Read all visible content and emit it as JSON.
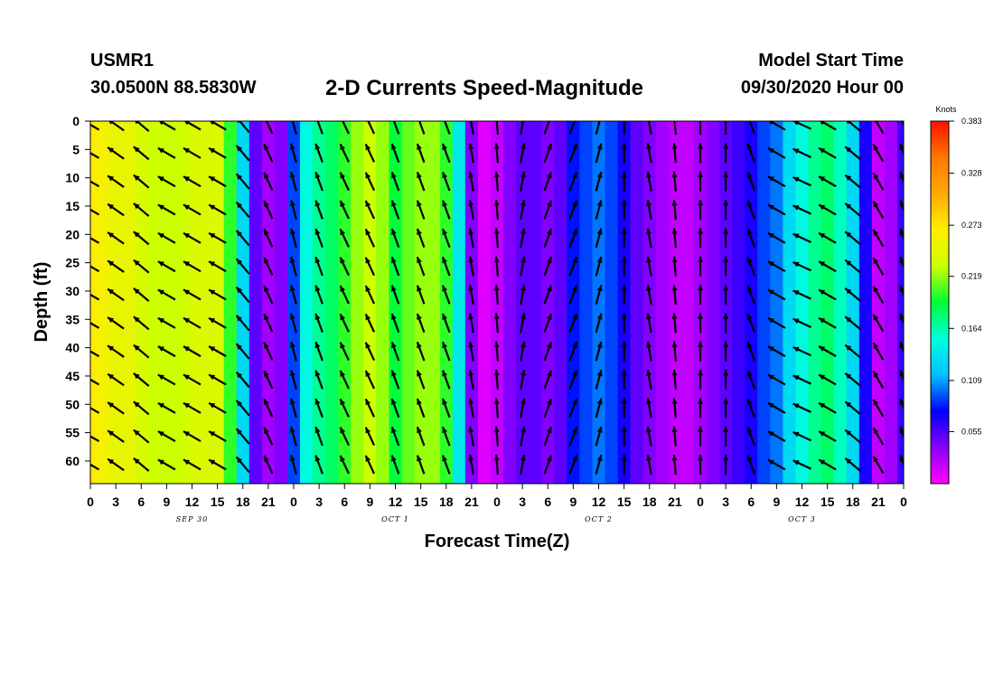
{
  "header": {
    "station_id": "USMR1",
    "station_position": "30.0500N 88.5830W",
    "title": "2-D Currents Speed-Magnitude",
    "start_label": "Model Start Time",
    "start_value": "09/30/2020 Hour 00"
  },
  "colors": {
    "scale": [
      "#ff00ff",
      "#8800ff",
      "#0000ff",
      "#00c0ff",
      "#00ffdd",
      "#00ff33",
      "#ccff00",
      "#ffee00",
      "#ffaa00",
      "#ff7700",
      "#ff1100"
    ],
    "arrow": "#000000"
  },
  "chart_data": {
    "type": "heatmap",
    "title": "2-D Currents Speed-Magnitude",
    "xlabel": "Forecast Time(Z)",
    "ylabel": "Depth (ft)",
    "x_range": [
      0,
      96
    ],
    "x_unit": "hours",
    "x_tick_labels": [
      "0",
      "3",
      "6",
      "9",
      "12",
      "15",
      "18",
      "21",
      "0",
      "3",
      "6",
      "9",
      "12",
      "15",
      "18",
      "21",
      "0",
      "3",
      "6",
      "9",
      "12",
      "15",
      "18",
      "21",
      "0",
      "3",
      "6",
      "9",
      "12",
      "15",
      "18",
      "21",
      "0"
    ],
    "day_labels": [
      {
        "text": "SEP 30",
        "hour": 12
      },
      {
        "text": "OCT 1",
        "hour": 36
      },
      {
        "text": "OCT 2",
        "hour": 60
      },
      {
        "text": "OCT 3",
        "hour": 84
      }
    ],
    "y_range": [
      0,
      64
    ],
    "y_ticks": [
      0,
      5,
      10,
      15,
      20,
      25,
      30,
      35,
      40,
      45,
      50,
      55,
      60
    ],
    "colorbar": {
      "title": "Knots",
      "range": [
        0,
        0.383
      ],
      "labels": [
        "0.383",
        "0.328",
        "0.273",
        "0.219",
        "0.164",
        "0.109",
        "0.055"
      ]
    },
    "columns": {
      "hours": [
        0,
        1.5,
        3,
        4.5,
        6,
        7.5,
        9,
        10.5,
        12,
        13.5,
        15,
        16.5,
        18,
        19.5,
        21,
        22.5,
        24,
        25.5,
        27,
        28.5,
        30,
        31.5,
        33,
        34.5,
        36,
        37.5,
        39,
        40.5,
        42,
        43.5,
        45,
        46.5,
        48,
        49.5,
        51,
        52.5,
        54,
        55.5,
        57,
        58.5,
        60,
        61.5,
        63,
        64.5,
        66,
        67.5,
        69,
        70.5,
        72,
        73.5,
        75,
        76.5,
        78,
        79.5,
        81,
        82.5,
        84,
        85.5,
        87,
        88.5,
        90,
        91.5,
        93,
        94.5,
        96
      ],
      "speed_knots": [
        0.27,
        0.26,
        0.25,
        0.25,
        0.24,
        0.23,
        0.23,
        0.23,
        0.24,
        0.24,
        0.24,
        0.2,
        0.13,
        0.05,
        0.03,
        0.04,
        0.09,
        0.15,
        0.17,
        0.18,
        0.2,
        0.22,
        0.23,
        0.22,
        0.19,
        0.21,
        0.22,
        0.22,
        0.2,
        0.14,
        0.04,
        0.01,
        0.02,
        0.04,
        0.05,
        0.05,
        0.04,
        0.05,
        0.08,
        0.09,
        0.1,
        0.09,
        0.07,
        0.05,
        0.04,
        0.03,
        0.02,
        0.02,
        0.03,
        0.04,
        0.05,
        0.06,
        0.07,
        0.09,
        0.1,
        0.13,
        0.15,
        0.17,
        0.18,
        0.16,
        0.13,
        0.07,
        0.02,
        0.03,
        0.06
      ],
      "arrow_dir_deg": [
        -60,
        -60,
        -55,
        -55,
        -50,
        -55,
        -60,
        -60,
        -60,
        -60,
        -60,
        -60,
        -40,
        -30,
        -25,
        -20,
        -15,
        -15,
        -20,
        -20,
        -25,
        -25,
        -25,
        -25,
        -20,
        -20,
        -20,
        -20,
        -20,
        -15,
        -10,
        -10,
        -5,
        0,
        10,
        15,
        20,
        20,
        20,
        20,
        15,
        10,
        0,
        -5,
        -10,
        -10,
        -5,
        0,
        0,
        0,
        0,
        0,
        -20,
        -40,
        -60,
        -60,
        -65,
        -60,
        -60,
        -55,
        -50,
        -40,
        -30,
        -25,
        -20
      ]
    }
  }
}
